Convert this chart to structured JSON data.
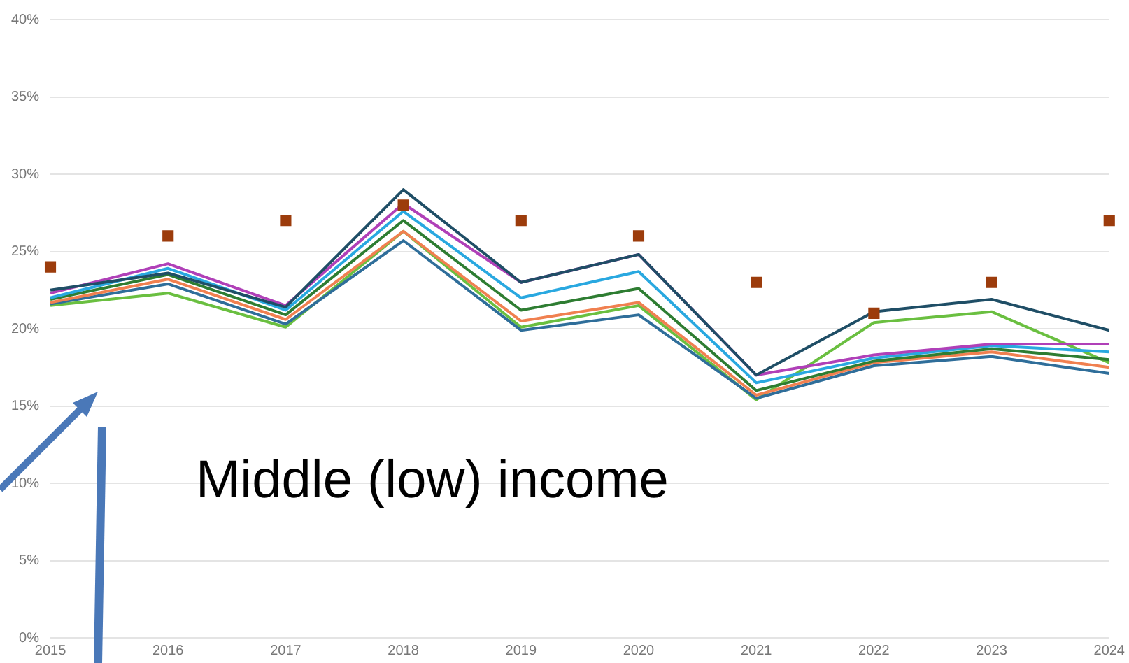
{
  "chart_data": {
    "type": "line",
    "categories": [
      "2015",
      "2016",
      "2017",
      "2018",
      "2019",
      "2020",
      "2021",
      "2022",
      "2023",
      "2024"
    ],
    "ylim": [
      0,
      40
    ],
    "yticks": [
      {
        "value": 0,
        "label": "0%"
      },
      {
        "value": 5,
        "label": "5%"
      },
      {
        "value": 10,
        "label": "10%"
      },
      {
        "value": 15,
        "label": "15%"
      },
      {
        "value": 20,
        "label": "20%"
      },
      {
        "value": 25,
        "label": "25%"
      },
      {
        "value": 30,
        "label": "30%"
      },
      {
        "value": 35,
        "label": "35%"
      },
      {
        "value": 40,
        "label": "40%"
      }
    ],
    "grid": "y",
    "legend": false,
    "marker": "none",
    "line_style": "solid",
    "annotations": [
      "Middle (low) income"
    ],
    "series": [
      {
        "color": "#1f4e66",
        "values": [
          22.5,
          23.6,
          21.4,
          29.0,
          23.0,
          24.8,
          17.0,
          21.1,
          21.9,
          19.9
        ]
      },
      {
        "color": "#b040b8",
        "values": [
          22.3,
          24.2,
          21.5,
          28.1,
          23.0,
          24.8,
          17.0,
          18.3,
          19.0,
          19.0
        ]
      },
      {
        "color": "#29a8e0",
        "values": [
          22.0,
          23.9,
          21.2,
          27.6,
          22.0,
          23.7,
          16.5,
          18.1,
          18.9,
          18.5
        ]
      },
      {
        "color": "#2e7d32",
        "values": [
          21.9,
          23.5,
          20.9,
          27.0,
          21.2,
          22.6,
          16.0,
          17.9,
          18.7,
          18.0
        ]
      },
      {
        "color": "#f08050",
        "values": [
          21.7,
          23.2,
          20.6,
          26.3,
          20.5,
          21.7,
          15.7,
          17.8,
          18.5,
          17.5
        ]
      },
      {
        "color": "#2f6e9a",
        "values": [
          21.6,
          22.9,
          20.3,
          25.7,
          19.9,
          20.9,
          15.5,
          17.6,
          18.2,
          17.1
        ]
      },
      {
        "color": "#6abf40",
        "values": [
          21.5,
          22.3,
          20.1,
          26.3,
          20.1,
          21.5,
          15.4,
          20.4,
          21.1,
          17.8
        ]
      },
      {
        "type": "scatter",
        "marker": "square",
        "color": "#9c3c0c",
        "values": [
          24,
          26,
          27,
          28,
          27,
          26,
          23,
          21,
          23,
          27
        ]
      }
    ]
  }
}
